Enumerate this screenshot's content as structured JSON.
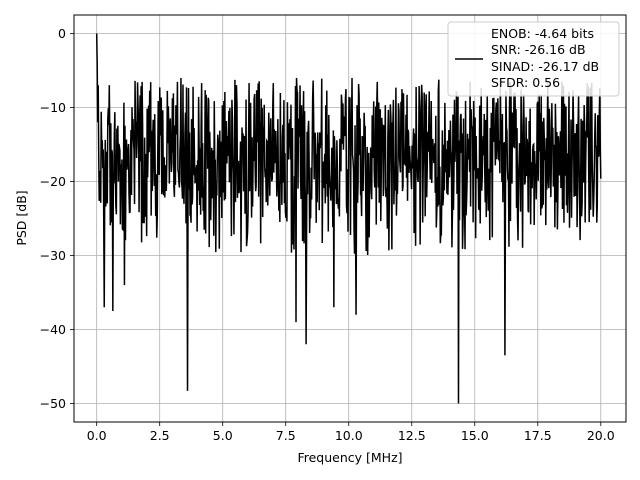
{
  "chart_data": {
    "type": "line",
    "title": "",
    "xlabel": "Frequency [MHz]",
    "ylabel": "PSD [dB]",
    "xlim": [
      -0.9,
      21.0
    ],
    "ylim": [
      -52.5,
      2.5
    ],
    "xticks": [
      0.0,
      2.5,
      5.0,
      7.5,
      10.0,
      12.5,
      15.0,
      17.5,
      20.0
    ],
    "xtick_labels": [
      "0.0",
      "2.5",
      "5.0",
      "7.5",
      "10.0",
      "12.5",
      "15.0",
      "17.5",
      "20.0"
    ],
    "yticks": [
      0,
      -10,
      -20,
      -30,
      -40,
      -50
    ],
    "ytick_labels": [
      "0",
      "−10",
      "−20",
      "−30",
      "−40",
      "−50"
    ],
    "grid": true,
    "legend": {
      "placement": "top-right",
      "lines": [
        "ENOB: -4.64 bits",
        "SNR: -26.16 dB",
        "SINAD: -26.17 dB",
        "SFDR: 0.56"
      ]
    },
    "series": [
      {
        "color": "#000000",
        "x_range": [
          0.0,
          20.0
        ],
        "points": 1000,
        "peak": [
          0.0,
          0.0
        ],
        "upper_envelope_approx": -6,
        "lower_envelope_approx": -24,
        "deep_nulls": [
          [
            0.3,
            -37
          ],
          [
            0.65,
            -37.5
          ],
          [
            1.1,
            -34
          ],
          [
            3.6,
            -48.3
          ],
          [
            7.9,
            -39
          ],
          [
            8.3,
            -42
          ],
          [
            9.4,
            -37
          ],
          [
            10.3,
            -38
          ],
          [
            14.35,
            -50
          ],
          [
            16.2,
            -43.5
          ]
        ]
      }
    ]
  }
}
